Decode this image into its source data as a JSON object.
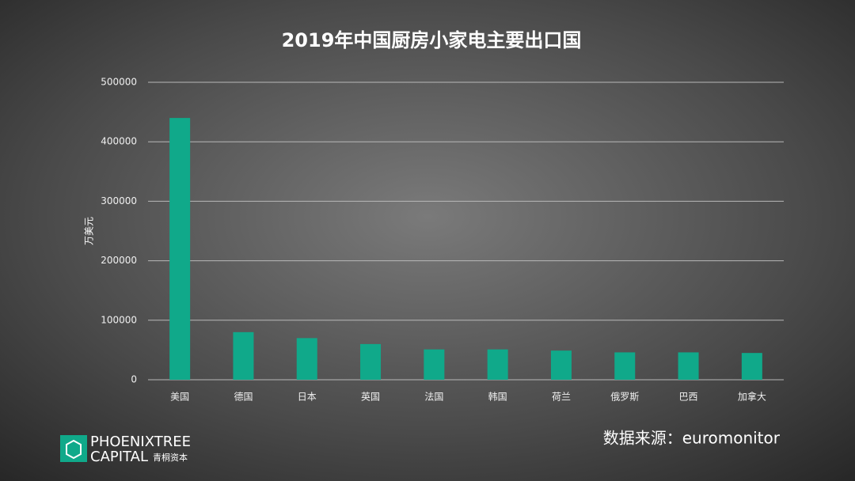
{
  "chart_data": {
    "type": "bar",
    "title": "2019年中国厨房小家电主要出口国",
    "y_label": "万美元",
    "categories": [
      "美国",
      "德国",
      "日本",
      "英国",
      "法国",
      "韩国",
      "荷兰",
      "俄罗斯",
      "巴西",
      "加拿大"
    ],
    "values": [
      440000,
      80000,
      70000,
      60000,
      51000,
      51000,
      49000,
      46000,
      46000,
      45000
    ],
    "color": "#10a98a",
    "ylim": [
      0,
      500000
    ],
    "yticks": [
      0,
      100000,
      200000,
      300000,
      400000,
      500000
    ],
    "grid": true,
    "source": "数据来源：euromonitor"
  },
  "logo": {
    "line1": "PHOENIXTREE",
    "line2": "CAPITAL",
    "cn": "青桐资本"
  }
}
